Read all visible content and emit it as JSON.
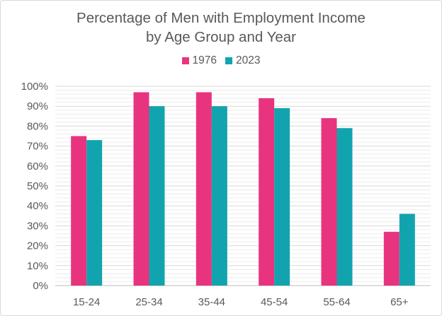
{
  "chart_data": {
    "type": "bar",
    "title_lines": [
      "Percentage of Men with Employment Income",
      "by Age Group and Year"
    ],
    "categories": [
      "15-24",
      "25-34",
      "35-44",
      "45-54",
      "55-64",
      "65+"
    ],
    "series": [
      {
        "name": "1976",
        "color": "#e8347f",
        "values": [
          75,
          97,
          97,
          94,
          84,
          27
        ]
      },
      {
        "name": "2023",
        "color": "#12a4ae",
        "values": [
          73,
          90,
          90,
          89,
          79,
          36
        ]
      }
    ],
    "ylim": [
      0,
      100
    ],
    "yticks": [
      0,
      10,
      20,
      30,
      40,
      50,
      60,
      70,
      80,
      90,
      100
    ],
    "ytick_labels": [
      "0%",
      "10%",
      "20%",
      "30%",
      "40%",
      "50%",
      "60%",
      "70%",
      "80%",
      "90%",
      "100%"
    ],
    "xlabel": "",
    "ylabel": "",
    "grid": true,
    "legend_position": "top-center"
  }
}
